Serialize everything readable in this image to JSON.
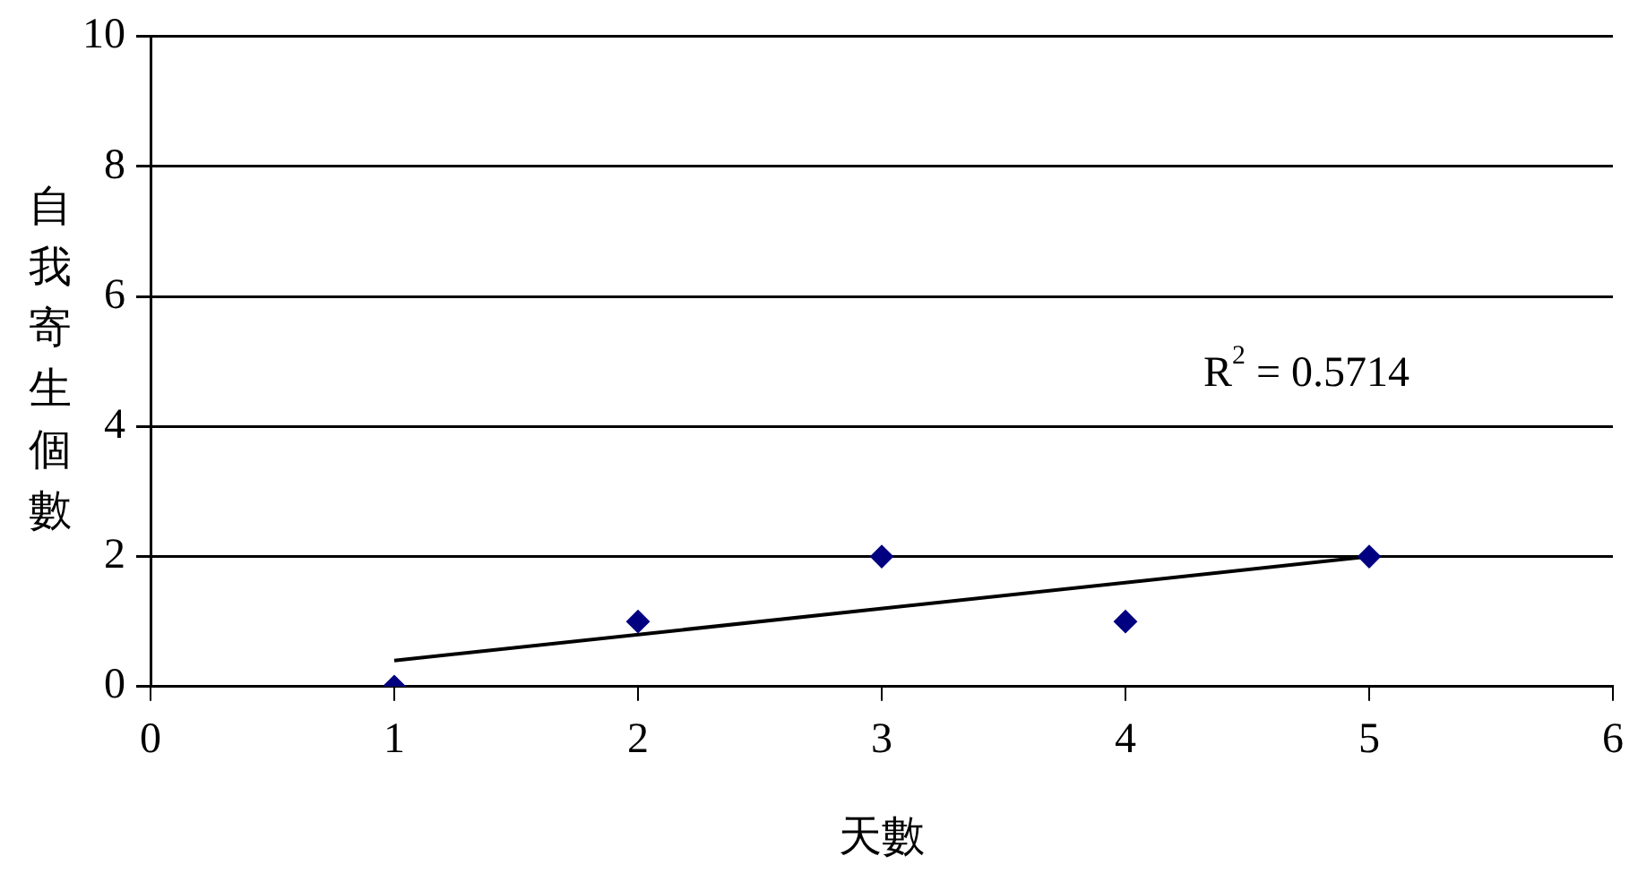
{
  "chart_data": {
    "type": "scatter",
    "xlabel": "天數",
    "ylabel": "自我寄生個數",
    "x": [
      1,
      2,
      3,
      4,
      5
    ],
    "series": [
      {
        "type": "scatter",
        "color": "#000080",
        "marker": "diamond",
        "values": [
          0,
          1,
          2,
          1,
          2
        ]
      },
      {
        "type": "line",
        "color": "#000000",
        "marker": "none",
        "x": [
          1,
          5
        ],
        "values": [
          0.4,
          2.0
        ]
      }
    ],
    "xlim": [
      0,
      6
    ],
    "xticks": [
      0,
      1,
      2,
      3,
      4,
      5,
      6
    ],
    "ylim": [
      0,
      10
    ],
    "yticks": [
      0,
      2,
      4,
      6,
      8,
      10
    ],
    "grid": "y",
    "legend": false,
    "annotations": [
      "R$^{2}$ = 0.5714"
    ]
  }
}
